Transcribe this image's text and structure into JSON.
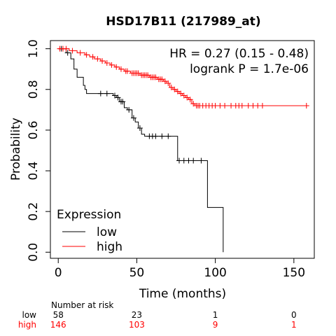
{
  "chart_data": {
    "type": "line",
    "title": "HSD17B11 (217989_at)",
    "xlabel": "Time (months)",
    "ylabel": "Probability",
    "xlim": [
      -5,
      163
    ],
    "ylim": [
      -0.03,
      1.04
    ],
    "xticks": [
      0,
      50,
      100,
      150
    ],
    "yticks": [
      0.0,
      0.2,
      0.4,
      0.6,
      0.8,
      1.0
    ],
    "annotations": [
      "HR = 0.27 (0.15 - 0.48)",
      "logrank P = 1.7e-06"
    ],
    "legend": {
      "title": "Expression",
      "position": "bottom-left"
    },
    "series": [
      {
        "name": "low",
        "color": "#000000",
        "steps": [
          [
            0,
            1.0
          ],
          [
            5,
            0.98
          ],
          [
            8,
            0.95
          ],
          [
            10,
            0.9
          ],
          [
            12,
            0.86
          ],
          [
            16,
            0.82
          ],
          [
            17,
            0.8
          ],
          [
            18,
            0.78
          ],
          [
            25,
            0.78
          ],
          [
            35,
            0.77
          ],
          [
            37,
            0.76
          ],
          [
            39,
            0.74
          ],
          [
            42,
            0.71
          ],
          [
            44,
            0.7
          ],
          [
            47,
            0.66
          ],
          [
            49,
            0.64
          ],
          [
            51,
            0.61
          ],
          [
            53,
            0.58
          ],
          [
            55,
            0.57
          ],
          [
            75,
            0.57
          ],
          [
            76,
            0.45
          ],
          [
            93,
            0.45
          ],
          [
            95,
            0.22
          ],
          [
            104,
            0.22
          ],
          [
            105,
            0.0
          ]
        ],
        "censored": [
          [
            2,
            1.0
          ],
          [
            6,
            0.98
          ],
          [
            27,
            0.78
          ],
          [
            31,
            0.78
          ],
          [
            36,
            0.77
          ],
          [
            38,
            0.76
          ],
          [
            40,
            0.74
          ],
          [
            41,
            0.74
          ],
          [
            45,
            0.7
          ],
          [
            48,
            0.66
          ],
          [
            52,
            0.61
          ],
          [
            58,
            0.57
          ],
          [
            60,
            0.57
          ],
          [
            62,
            0.57
          ],
          [
            66,
            0.57
          ],
          [
            70,
            0.57
          ],
          [
            77,
            0.45
          ],
          [
            80,
            0.45
          ],
          [
            83,
            0.45
          ],
          [
            86,
            0.45
          ],
          [
            91,
            0.45
          ]
        ]
      },
      {
        "name": "high",
        "color": "#ff0000",
        "steps": [
          [
            0,
            1.0
          ],
          [
            7,
            0.99
          ],
          [
            12,
            0.98
          ],
          [
            17,
            0.97
          ],
          [
            20,
            0.96
          ],
          [
            23,
            0.95
          ],
          [
            27,
            0.94
          ],
          [
            30,
            0.93
          ],
          [
            33,
            0.92
          ],
          [
            36,
            0.91
          ],
          [
            39,
            0.9
          ],
          [
            42,
            0.89
          ],
          [
            46,
            0.88
          ],
          [
            52,
            0.87
          ],
          [
            58,
            0.86
          ],
          [
            63,
            0.85
          ],
          [
            67,
            0.84
          ],
          [
            69,
            0.83
          ],
          [
            71,
            0.81
          ],
          [
            73,
            0.8
          ],
          [
            75,
            0.79
          ],
          [
            77,
            0.78
          ],
          [
            79,
            0.77
          ],
          [
            81,
            0.76
          ],
          [
            83,
            0.75
          ],
          [
            85,
            0.73
          ],
          [
            87,
            0.72
          ],
          [
            158,
            0.72
          ]
        ],
        "censored": [
          [
            1,
            1.0
          ],
          [
            3,
            1.0
          ],
          [
            5,
            1.0
          ],
          [
            9,
            0.99
          ],
          [
            14,
            0.98
          ],
          [
            18,
            0.97
          ],
          [
            22,
            0.96
          ],
          [
            25,
            0.95
          ],
          [
            28,
            0.94
          ],
          [
            31,
            0.93
          ],
          [
            34,
            0.92
          ],
          [
            37,
            0.91
          ],
          [
            40,
            0.9
          ],
          [
            43,
            0.89
          ],
          [
            44,
            0.89
          ],
          [
            47,
            0.88
          ],
          [
            48,
            0.88
          ],
          [
            49,
            0.88
          ],
          [
            50,
            0.88
          ],
          [
            51,
            0.88
          ],
          [
            53,
            0.87
          ],
          [
            54,
            0.87
          ],
          [
            55,
            0.87
          ],
          [
            56,
            0.87
          ],
          [
            57,
            0.87
          ],
          [
            59,
            0.86
          ],
          [
            60,
            0.86
          ],
          [
            61,
            0.86
          ],
          [
            62,
            0.86
          ],
          [
            64,
            0.85
          ],
          [
            65,
            0.85
          ],
          [
            66,
            0.85
          ],
          [
            68,
            0.84
          ],
          [
            70,
            0.83
          ],
          [
            72,
            0.81
          ],
          [
            74,
            0.8
          ],
          [
            76,
            0.79
          ],
          [
            78,
            0.78
          ],
          [
            80,
            0.77
          ],
          [
            82,
            0.76
          ],
          [
            84,
            0.75
          ],
          [
            86,
            0.73
          ],
          [
            88,
            0.72
          ],
          [
            89,
            0.72
          ],
          [
            90,
            0.72
          ],
          [
            92,
            0.72
          ],
          [
            94,
            0.72
          ],
          [
            96,
            0.72
          ],
          [
            98,
            0.72
          ],
          [
            100,
            0.72
          ],
          [
            103,
            0.72
          ],
          [
            106,
            0.72
          ],
          [
            110,
            0.72
          ],
          [
            113,
            0.72
          ],
          [
            115,
            0.72
          ],
          [
            117,
            0.72
          ],
          [
            121,
            0.72
          ],
          [
            124,
            0.72
          ],
          [
            127,
            0.72
          ],
          [
            130,
            0.72
          ],
          [
            158,
            0.72
          ]
        ]
      }
    ],
    "risk_table": {
      "title": "Number at risk",
      "times": [
        0,
        50,
        100,
        150
      ],
      "rows": [
        {
          "label": "low",
          "color": "#000000",
          "values": [
            "58",
            "23",
            "1",
            "0"
          ]
        },
        {
          "label": "high",
          "color": "#ff0000",
          "values": [
            "146",
            "103",
            "9",
            "1"
          ]
        }
      ]
    }
  }
}
